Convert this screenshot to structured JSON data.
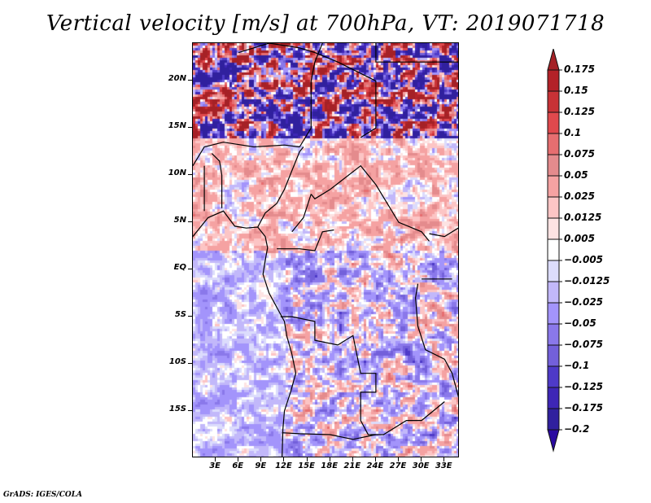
{
  "title": "Vertical velocity [m/s] at 700hPa, VT: 2019071718",
  "footer": "GrADS: IGES/COLA",
  "map": {
    "lon_range": [
      0,
      35
    ],
    "lat_range": [
      -20,
      24
    ],
    "lat_ticks": [
      {
        "value": 20,
        "label": "20N"
      },
      {
        "value": 15,
        "label": "15N"
      },
      {
        "value": 10,
        "label": "10N"
      },
      {
        "value": 5,
        "label": "5N"
      },
      {
        "value": 0,
        "label": "EQ"
      },
      {
        "value": -5,
        "label": "5S"
      },
      {
        "value": -10,
        "label": "10S"
      },
      {
        "value": -15,
        "label": "15S"
      }
    ],
    "lon_ticks": [
      {
        "value": 3,
        "label": "3E"
      },
      {
        "value": 6,
        "label": "6E"
      },
      {
        "value": 9,
        "label": "9E"
      },
      {
        "value": 12,
        "label": "12E"
      },
      {
        "value": 15,
        "label": "15E"
      },
      {
        "value": 18,
        "label": "18E"
      },
      {
        "value": 21,
        "label": "21E"
      },
      {
        "value": 24,
        "label": "24E"
      },
      {
        "value": 27,
        "label": "27E"
      },
      {
        "value": 30,
        "label": "30E"
      },
      {
        "value": 33,
        "label": "33E"
      }
    ]
  },
  "colorbar": {
    "units": "m/s",
    "levels": [
      {
        "label": "0.175",
        "color": "#b32228"
      },
      {
        "label": "0.15",
        "color": "#c83236"
      },
      {
        "label": "0.125",
        "color": "#e0494d"
      },
      {
        "label": "0.1",
        "color": "#e66e70"
      },
      {
        "label": "0.075",
        "color": "#e48b8d"
      },
      {
        "label": "0.05",
        "color": "#f5a2a2"
      },
      {
        "label": "0.025",
        "color": "#fcc5c5"
      },
      {
        "label": "0.0125",
        "color": "#fde3e3"
      },
      {
        "label": "0.005",
        "color": "#ffffff"
      },
      {
        "label": "-0.005",
        "color": "#dcdcfc"
      },
      {
        "label": "-0.0125",
        "color": "#c2b8fa"
      },
      {
        "label": "-0.025",
        "color": "#a394fb"
      },
      {
        "label": "-0.05",
        "color": "#8a78ea"
      },
      {
        "label": "-0.075",
        "color": "#7360da"
      },
      {
        "label": "-0.1",
        "color": "#4e3ac8"
      },
      {
        "label": "-0.125",
        "color": "#3e26b6"
      },
      {
        "label": "-0.175",
        "color": "#30209e"
      },
      {
        "label": "-0.2",
        "color": ""
      }
    ],
    "top_arrow_color": "#a52126",
    "bottom_arrow_color": "#2a0aa0"
  }
}
